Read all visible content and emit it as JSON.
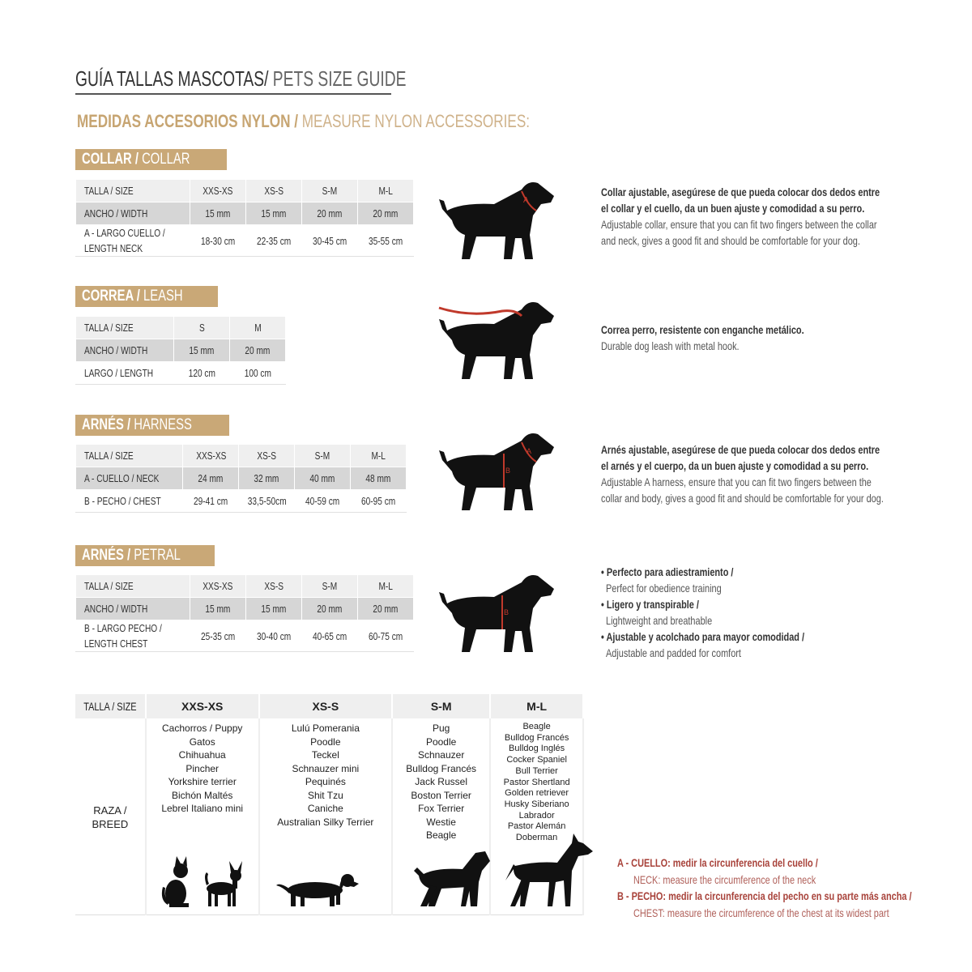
{
  "title": {
    "es": "GUÍA TALLAS MASCOTAS/",
    "en": " PETS SIZE GUIDE"
  },
  "subtitle": {
    "es": "MEDIDAS ACCESORIOS NYLON / ",
    "en": "MEASURE NYLON ACCESSORIES:"
  },
  "colors": {
    "gold": "#c9a877",
    "red": "#c0392b",
    "dog": "#111111"
  },
  "sections": [
    {
      "label_es": "COLLAR / ",
      "label_en": "COLLAR",
      "rows": [
        [
          "TALLA / SIZE",
          "XXS-XS",
          "XS-S",
          "S-M",
          "M-L"
        ],
        [
          "ANCHO / WIDTH",
          "15 mm",
          "15 mm",
          "20 mm",
          "20 mm"
        ],
        [
          "A - LARGO CUELLO / LENGTH NECK",
          "18-30 cm",
          "22-35 cm",
          "30-45 cm",
          "35-55 cm"
        ]
      ],
      "desc": [
        {
          "es": "Collar ajustable, asegúrese de que pueda colocar dos dedos entre"
        },
        {
          "es": "el collar y el cuello, da un buen ajuste y comodidad a su perro."
        },
        {
          "en": "Adjustable collar, ensure that you can fit two fingers between the collar"
        },
        {
          "en": "and neck, gives a good fit and should be comfortable for your dog."
        }
      ]
    },
    {
      "label_es": "CORREA / ",
      "label_en": "LEASH",
      "rows": [
        [
          "TALLA / SIZE",
          "S",
          "M"
        ],
        [
          "ANCHO / WIDTH",
          "15 mm",
          "20 mm"
        ],
        [
          "LARGO / LENGTH",
          "120 cm",
          "100 cm"
        ]
      ],
      "desc": [
        {
          "es": "Correa perro, resistente con enganche metálico."
        },
        {
          "en": "Durable dog leash with metal hook."
        }
      ]
    },
    {
      "label_es": "ARNÉS / ",
      "label_en": "HARNESS",
      "rows": [
        [
          "TALLA / SIZE",
          "XXS-XS",
          "XS-S",
          "S-M",
          "M-L"
        ],
        [
          "A - CUELLO / NECK",
          "24 mm",
          "32 mm",
          "40 mm",
          "48 mm"
        ],
        [
          "B - PECHO / CHEST",
          "29-41 cm",
          "33,5-50cm",
          "40-59 cm",
          "60-95 cm"
        ]
      ],
      "desc": [
        {
          "es": "Arnés ajustable, asegúrese de que pueda colocar dos dedos entre"
        },
        {
          "es": "el arnés y el cuerpo, da un buen ajuste y comodidad a su perro."
        },
        {
          "en": "Adjustable A harness, ensure that you can fit two fingers between the"
        },
        {
          "en": "collar and body, gives a good fit and should be comfortable for your dog."
        }
      ]
    },
    {
      "label_es": "ARNÉS / ",
      "label_en": "PETRAL",
      "rows": [
        [
          "TALLA / SIZE",
          "XXS-XS",
          "XS-S",
          "S-M",
          "M-L"
        ],
        [
          "ANCHO / WIDTH",
          "15 mm",
          "15 mm",
          "20 mm",
          "20 mm"
        ],
        [
          "B - LARGO PECHO / LENGTH CHEST",
          "25-35 cm",
          "30-40 cm",
          "40-65 cm",
          "60-75 cm"
        ]
      ],
      "desc": [
        {
          "es": "• Perfecto para adiestramiento /"
        },
        {
          "en": "  Perfect for obedience training"
        },
        {
          "es": "• Ligero y transpirable /"
        },
        {
          "en": "  Lightweight and breathable"
        },
        {
          "es": "• Ajustable y acolchado para mayor comodidad /"
        },
        {
          "en": "  Adjustable and padded for comfort"
        }
      ]
    }
  ],
  "breeds": {
    "header": [
      "TALLA /  SIZE",
      "XXS-XS",
      "XS-S",
      "S-M",
      "M-L"
    ],
    "row_label": "RAZA / BREED",
    "columns": [
      [
        "Cachorros / Puppy",
        "Gatos",
        "Chihuahua",
        "Pincher",
        "Yorkshire terrier",
        "Bichón Maltés",
        "Lebrel Italiano mini"
      ],
      [
        "Lulú Pomerania",
        "Poodle",
        "Teckel",
        "Schnauzer mini",
        "Pequinés",
        "Shit Tzu",
        "Caniche",
        "Australian Silky Terrier"
      ],
      [
        "Pug",
        "Poodle",
        "Schnauzer",
        "Bulldog Francés",
        "Jack Russel",
        "Boston Terrier",
        "Fox Terrier",
        "Westie",
        "Beagle"
      ],
      [
        "Beagle",
        "Bulldog Francés",
        "Bulldog Inglés",
        "Cocker Spaniel",
        "Bull Terrier",
        "Pastor Shertland",
        "Golden retriever",
        "Husky Siberiano",
        "Labrador",
        "Pastor Alemán",
        "Doberman"
      ]
    ]
  },
  "notes": {
    "a_es_bold": "A - CUELLO:",
    "a_es": " medir la circunferencia del cuello /",
    "a_en_bold": "NECK:",
    "a_en": " measure the circumference of the neck",
    "b_es_bold": "B - PECHO:",
    "b_es": " medir la circunferencia del pecho en su parte más ancha /",
    "b_en_bold": "CHEST:",
    "b_en": " measure the circumference of the chest at its widest part"
  }
}
